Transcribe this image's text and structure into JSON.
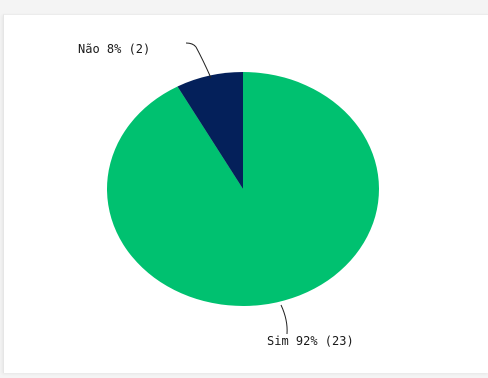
{
  "chart_data": {
    "type": "pie",
    "slices": [
      {
        "label": "Sim",
        "percent_label": "92%",
        "count": 23,
        "text": "Sim 92% (23)",
        "color": "#00c170"
      },
      {
        "label": "Não",
        "percent_label": "8%",
        "count": 2,
        "text": "Não 8% (2)",
        "color": "#04205a"
      }
    ],
    "title": "",
    "legend": "none"
  }
}
